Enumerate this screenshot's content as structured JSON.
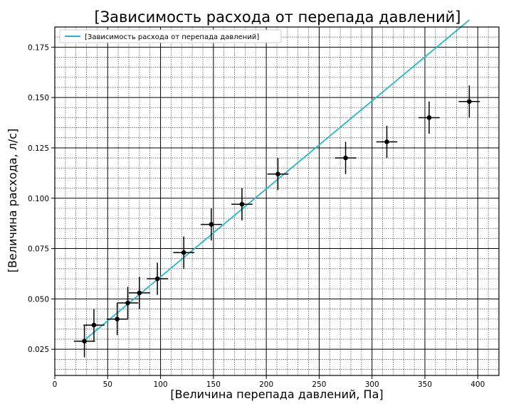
{
  "chart_data": {
    "type": "scatter",
    "title": "[Зависимость расхода от перепада давлений]",
    "xlabel": "[Величина перепада давлений, Па]",
    "ylabel": "[Величина расхода, л/с]",
    "xlim": [
      0,
      420
    ],
    "ylim": [
      0.012,
      0.185
    ],
    "x_ticks": [
      0,
      50,
      100,
      150,
      200,
      250,
      300,
      350,
      400
    ],
    "x_tick_labels": [
      "0",
      "50",
      "100",
      "150",
      "200",
      "250",
      "300",
      "350",
      "400"
    ],
    "y_ticks": [
      0.025,
      0.05,
      0.075,
      0.1,
      0.125,
      0.15,
      0.175
    ],
    "y_tick_labels": [
      "0.025",
      "0.050",
      "0.075",
      "0.100",
      "0.125",
      "0.150",
      "0.175"
    ],
    "grid": {
      "major": true,
      "minor": true
    },
    "legend": {
      "position": "top-left",
      "entries": [
        "[Зависимость расхода от перепада давлений]"
      ]
    },
    "line": {
      "name": "[Зависимость расхода от перепада давлений]",
      "x": [
        28,
        392
      ],
      "y": [
        0.0295,
        0.1885
      ],
      "color": "#22bbc3"
    },
    "points": {
      "color": "#000000",
      "x": [
        28,
        37,
        59,
        69,
        80,
        97,
        122,
        148,
        177,
        211,
        275,
        314,
        354,
        392
      ],
      "y": [
        0.029,
        0.037,
        0.04,
        0.048,
        0.053,
        0.06,
        0.073,
        0.087,
        0.097,
        0.112,
        0.12,
        0.128,
        0.14,
        0.148
      ],
      "xerr": [
        10,
        10,
        10,
        10,
        10,
        10,
        10,
        10,
        10,
        10,
        10,
        10,
        10,
        10
      ],
      "yerr": [
        0.008,
        0.008,
        0.008,
        0.008,
        0.008,
        0.008,
        0.008,
        0.008,
        0.008,
        0.008,
        0.008,
        0.008,
        0.008,
        0.008
      ]
    }
  }
}
